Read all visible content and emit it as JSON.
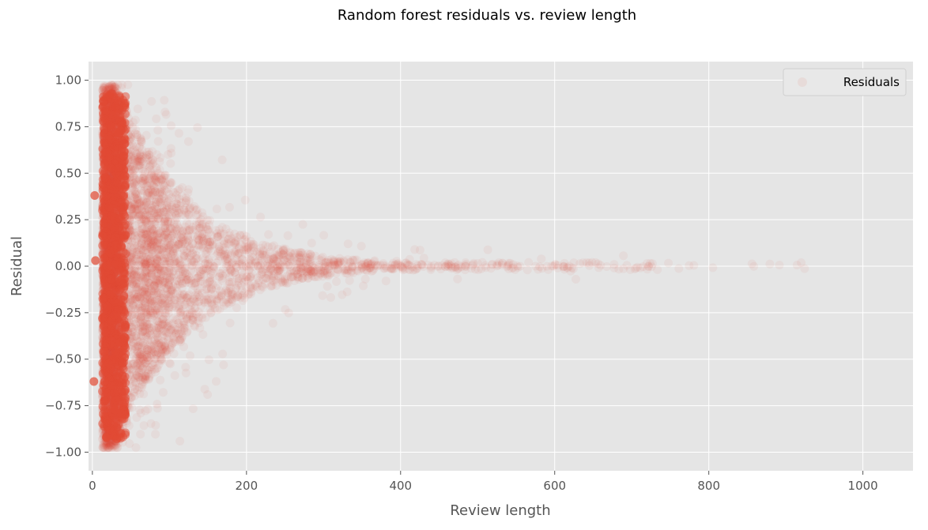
{
  "chart_data": {
    "type": "scatter",
    "title": "Random forest residuals vs. review length",
    "xlabel": "Review length",
    "ylabel": "Residual",
    "xlim": [
      -5,
      1065
    ],
    "ylim": [
      -1.1,
      1.1
    ],
    "xticks": [
      0,
      200,
      400,
      600,
      800,
      1000
    ],
    "xtick_labels": [
      "0",
      "200",
      "400",
      "600",
      "800",
      "1000"
    ],
    "yticks": [
      -1.0,
      -0.75,
      -0.5,
      -0.25,
      0.0,
      0.25,
      0.5,
      0.75,
      1.0
    ],
    "ytick_labels": [
      "−1.00",
      "−0.75",
      "−0.50",
      "−0.25",
      "0.00",
      "0.25",
      "0.50",
      "0.75",
      "1.00"
    ],
    "grid": true,
    "legend_position": "top-right",
    "series": [
      {
        "name": "Residuals",
        "color": "#E24A33",
        "alpha": 0.06,
        "distribution": {
          "x_range": [
            1,
            1000
          ],
          "y_range": [
            -1.0,
            1.0
          ],
          "mode_x": 25,
          "envelope": "residual spread narrows as review length increases",
          "outliers": [
            [
              3,
              0.38
            ],
            [
              4,
              0.03
            ],
            [
              2,
              -0.62
            ]
          ]
        }
      }
    ]
  }
}
